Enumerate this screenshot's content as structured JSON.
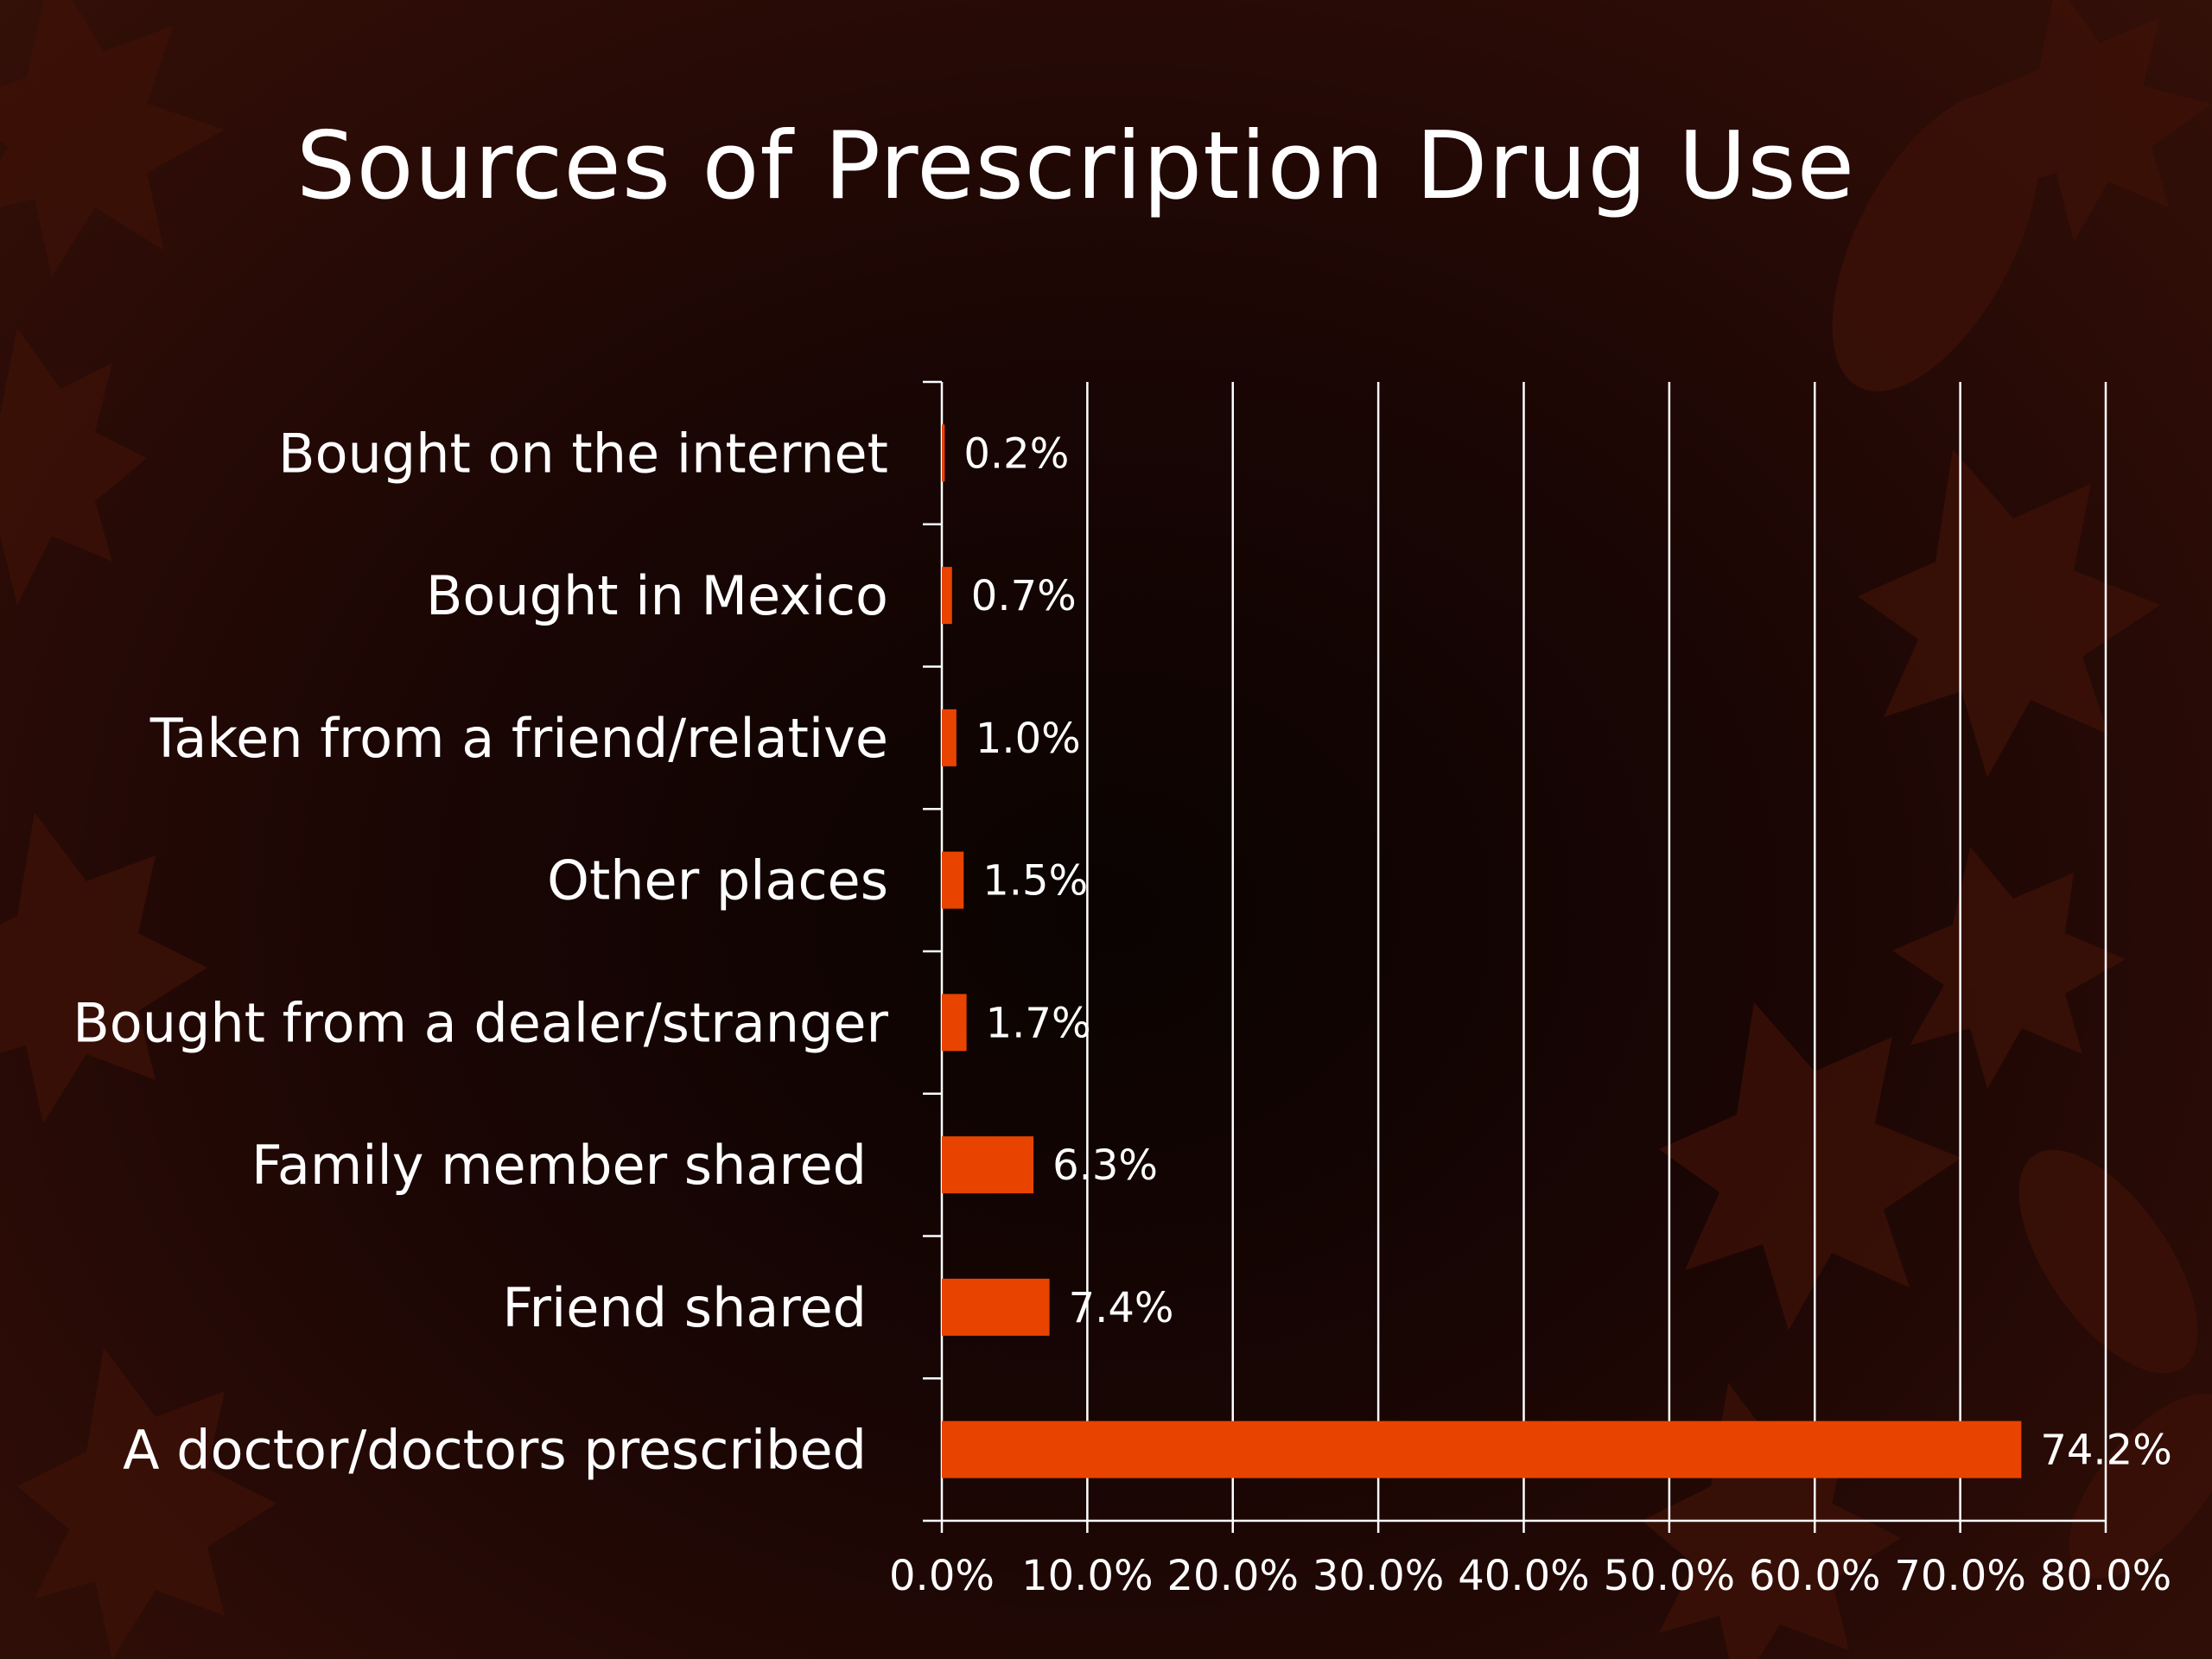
{
  "slide": {
    "title": "Sources of Prescription Drug Use"
  },
  "colors": {
    "bar": "#e84400",
    "grid": "#ffffff",
    "text": "#ffffff",
    "background": "#1a0604",
    "leaf": "#4a1509"
  },
  "chart_data": {
    "type": "bar",
    "orientation": "horizontal",
    "title": "Sources of Prescription Drug Use",
    "categories": [
      "Bought on the internet",
      "Bought in Mexico",
      "Taken from a friend/relative",
      "Other places",
      "Bought from a dealer/stranger",
      "Family member shared",
      "Friend shared",
      "A doctor/doctors prescribed"
    ],
    "values": [
      0.2,
      0.7,
      1.0,
      1.5,
      1.7,
      6.3,
      7.4,
      74.2
    ],
    "value_labels": [
      "0.2%",
      "0.7%",
      "1.0%",
      "1.5%",
      "1.7%",
      "6.3%",
      "7.4%",
      "74.2%"
    ],
    "xlim": [
      0,
      80
    ],
    "x_ticks": [
      "0.0%",
      "10.0%",
      "20.0%",
      "30.0%",
      "40.0%",
      "50.0%",
      "60.0%",
      "70.0%",
      "80.0%"
    ],
    "xlabel": "",
    "ylabel": "",
    "grid": "vertical",
    "legend": "none"
  }
}
